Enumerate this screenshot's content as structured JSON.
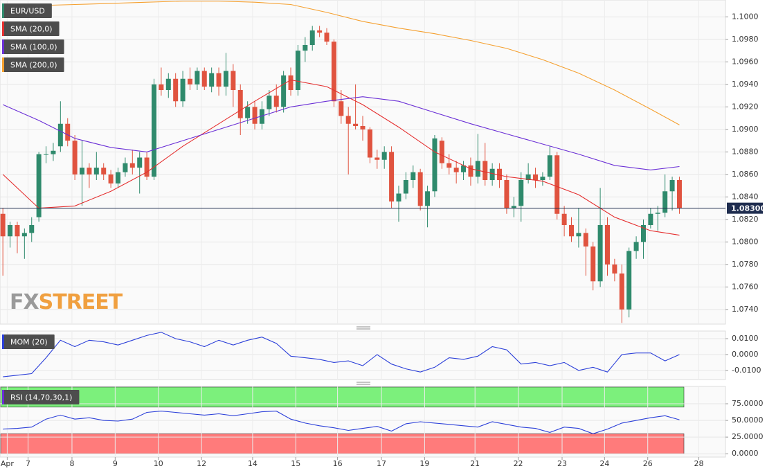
{
  "logo": [
    "FX",
    "STREET"
  ],
  "chart_data": [
    {
      "type": "candlestick",
      "title": "EUR/USD",
      "up_color": "#2f8a6c",
      "down_color": "#e0533f",
      "xlim": [
        -0.4,
        100.4
      ],
      "ylim": [
        1.0727,
        1.1015
      ],
      "yticks": [
        {
          "value": 1.1,
          "label": "1.1000"
        },
        {
          "value": 1.098,
          "label": "1.0980"
        },
        {
          "value": 1.096,
          "label": "1.0960"
        },
        {
          "value": 1.094,
          "label": "1.0940"
        },
        {
          "value": 1.092,
          "label": "1.0920"
        },
        {
          "value": 1.09,
          "label": "1.0900"
        },
        {
          "value": 1.088,
          "label": "1.0880"
        },
        {
          "value": 1.086,
          "label": "1.0860"
        },
        {
          "value": 1.084,
          "label": "1.0840"
        },
        {
          "value": 1.082,
          "label": "1.0820"
        },
        {
          "value": 1.08,
          "label": "1.0800"
        },
        {
          "value": 1.078,
          "label": "1.0780"
        },
        {
          "value": 1.076,
          "label": "1.0760"
        },
        {
          "value": 1.074,
          "label": "1.0740"
        }
      ],
      "grid": true,
      "last_price": {
        "value": 1.083,
        "label": "1.08300"
      },
      "candles": [
        [
          1.0825,
          1.083,
          1.077,
          1.0805
        ],
        [
          1.0805,
          1.0818,
          1.0795,
          1.0815
        ],
        [
          1.0815,
          1.0818,
          1.079,
          1.0805
        ],
        [
          1.0805,
          1.0812,
          1.0785,
          1.0808
        ],
        [
          1.0808,
          1.0822,
          1.08,
          1.0815
        ],
        [
          1.0822,
          1.088,
          1.0818,
          1.0878
        ],
        [
          1.0878,
          1.0885,
          1.087,
          1.0878
        ],
        [
          1.0878,
          1.0888,
          1.0872,
          1.0881
        ],
        [
          1.0885,
          1.0925,
          1.088,
          1.0905
        ],
        [
          1.0905,
          1.091,
          1.0885,
          1.089
        ],
        [
          1.089,
          1.0895,
          1.0855,
          1.086
        ],
        [
          1.086,
          1.089,
          1.0832,
          1.0866
        ],
        [
          1.0866,
          1.087,
          1.0848,
          1.086
        ],
        [
          1.086,
          1.088,
          1.0855,
          1.0866
        ],
        [
          1.0866,
          1.087,
          1.0855,
          1.086
        ],
        [
          1.086,
          1.0864,
          1.0848,
          1.0852
        ],
        [
          1.0852,
          1.0866,
          1.0848,
          1.0862
        ],
        [
          1.0862,
          1.0875,
          1.0858,
          1.087
        ],
        [
          1.087,
          1.0882,
          1.086,
          1.0866
        ],
        [
          1.0866,
          1.088,
          1.0843,
          1.0875
        ],
        [
          1.0875,
          1.088,
          1.0855,
          1.0858
        ],
        [
          1.0858,
          1.0945,
          1.0855,
          1.094
        ],
        [
          1.094,
          1.0955,
          1.093,
          1.0935
        ],
        [
          1.0935,
          1.095,
          1.0928,
          1.0945
        ],
        [
          1.0945,
          1.095,
          1.092,
          1.0925
        ],
        [
          1.0925,
          1.0952,
          1.092,
          1.0945
        ],
        [
          1.0945,
          1.0955,
          1.0935,
          1.094
        ],
        [
          1.094,
          1.0955,
          1.0935,
          1.0952
        ],
        [
          1.0952,
          1.0955,
          1.0935,
          1.0938
        ],
        [
          1.0938,
          1.0955,
          1.0933,
          1.095
        ],
        [
          1.095,
          1.0955,
          1.093,
          1.0938
        ],
        [
          1.0938,
          1.0968,
          1.093,
          1.0952
        ],
        [
          1.0952,
          1.0958,
          1.092,
          1.0935
        ],
        [
          1.0935,
          1.094,
          1.0895,
          1.091
        ],
        [
          1.091,
          1.0925,
          1.0905,
          1.092
        ],
        [
          1.092,
          1.0925,
          1.09,
          1.0905
        ],
        [
          1.0905,
          1.0925,
          1.09,
          1.0918
        ],
        [
          1.0918,
          1.0935,
          1.0912,
          1.093
        ],
        [
          1.093,
          1.094,
          1.0915,
          1.092
        ],
        [
          1.092,
          1.0952,
          1.0915,
          1.0948
        ],
        [
          1.0948,
          1.0955,
          1.093,
          1.0935
        ],
        [
          1.0935,
          1.0975,
          1.093,
          1.097
        ],
        [
          1.097,
          1.0982,
          1.096,
          1.0975
        ],
        [
          1.0975,
          1.0992,
          1.097,
          1.0988
        ],
        [
          1.0988,
          1.0992,
          1.0982,
          1.0986
        ],
        [
          1.0986,
          1.099,
          1.0975,
          1.0978
        ],
        [
          1.0978,
          1.098,
          1.092,
          1.0925
        ],
        [
          1.0925,
          1.0935,
          1.0905,
          1.0912
        ],
        [
          1.0912,
          1.092,
          1.086,
          1.0905
        ],
        [
          1.0905,
          1.094,
          1.09,
          1.0903
        ],
        [
          1.0903,
          1.0912,
          1.089,
          1.09
        ],
        [
          1.09,
          1.0902,
          1.087,
          1.0875
        ],
        [
          1.0875,
          1.0882,
          1.0865,
          1.0873
        ],
        [
          1.0873,
          1.0885,
          1.0865,
          1.088
        ],
        [
          1.088,
          1.0885,
          1.083,
          1.0836
        ],
        [
          1.0836,
          1.085,
          1.0818,
          1.0843
        ],
        [
          1.0843,
          1.0862,
          1.0838,
          1.0855
        ],
        [
          1.0855,
          1.0868,
          1.0848,
          1.0862
        ],
        [
          1.0862,
          1.0865,
          1.0828,
          1.0832
        ],
        [
          1.0832,
          1.085,
          1.0813,
          1.0845
        ],
        [
          1.0845,
          1.0895,
          1.084,
          1.0892
        ],
        [
          1.089,
          1.0893,
          1.0865,
          1.087
        ],
        [
          1.087,
          1.0878,
          1.086,
          1.0866
        ],
        [
          1.0866,
          1.0872,
          1.0852,
          1.0862
        ],
        [
          1.0862,
          1.0872,
          1.0855,
          1.0868
        ],
        [
          1.0868,
          1.0875,
          1.085,
          1.0858
        ],
        [
          1.0858,
          1.0896,
          1.0852,
          1.0872
        ],
        [
          1.0872,
          1.0888,
          1.085,
          1.0855
        ],
        [
          1.0855,
          1.087,
          1.085,
          1.0865
        ],
        [
          1.0865,
          1.087,
          1.0848,
          1.0855
        ],
        [
          1.0855,
          1.086,
          1.0825,
          1.083
        ],
        [
          1.083,
          1.084,
          1.0822,
          1.0832
        ],
        [
          1.0832,
          1.0862,
          1.0818,
          1.0855
        ],
        [
          1.0855,
          1.087,
          1.0852,
          1.086
        ],
        [
          1.086,
          1.0866,
          1.0848,
          1.0855
        ],
        [
          1.0855,
          1.0862,
          1.085,
          1.0858
        ],
        [
          1.0858,
          1.0885,
          1.0855,
          1.0877
        ],
        [
          1.0877,
          1.088,
          1.082,
          1.0825
        ],
        [
          1.0825,
          1.0832,
          1.0805,
          1.0815
        ],
        [
          1.0815,
          1.0822,
          1.08,
          1.0805
        ],
        [
          1.0805,
          1.083,
          1.0795,
          1.0808
        ],
        [
          1.0808,
          1.0812,
          1.077,
          1.0796
        ],
        [
          1.0796,
          1.08,
          1.0757,
          1.0765
        ],
        [
          1.0765,
          1.0848,
          1.076,
          1.0815
        ],
        [
          1.0815,
          1.0822,
          1.077,
          1.078
        ],
        [
          1.078,
          1.0785,
          1.0765,
          1.0772
        ],
        [
          1.0772,
          1.078,
          1.0728,
          1.074
        ],
        [
          1.074,
          1.0795,
          1.0733,
          1.0792
        ],
        [
          1.0792,
          1.0805,
          1.0785,
          1.08
        ],
        [
          1.08,
          1.082,
          1.0785,
          1.0815
        ],
        [
          1.0815,
          1.083,
          1.0812,
          1.0825
        ],
        [
          1.0825,
          1.0832,
          1.081,
          1.0826
        ],
        [
          1.0826,
          1.086,
          1.0822,
          1.0845
        ],
        [
          1.0845,
          1.0858,
          1.0828,
          1.0855
        ],
        [
          1.0855,
          1.0858,
          1.0825,
          1.083
        ]
      ],
      "x": [
        0,
        5,
        10,
        15,
        20,
        25,
        30,
        35,
        40,
        45,
        50,
        55,
        60,
        65,
        70,
        75,
        80,
        85,
        90,
        94
      ],
      "series": [
        {
          "name": "SMA (20,0)",
          "color": "#e52f2f",
          "values": [
            1.086,
            1.083,
            1.0832,
            1.0845,
            1.0862,
            1.0885,
            1.0905,
            1.0925,
            1.0944,
            1.0938,
            1.0922,
            1.0902,
            1.088,
            1.0865,
            1.0858,
            1.0854,
            1.0842,
            1.0822,
            1.081,
            1.0806
          ]
        },
        {
          "name": "SMA (100,0)",
          "color": "#6a2fd6",
          "values": [
            1.0922,
            1.0908,
            1.0892,
            1.0884,
            1.088,
            1.089,
            1.09,
            1.091,
            1.092,
            1.0925,
            1.0929,
            1.0925,
            1.0915,
            1.0905,
            1.0896,
            1.0887,
            1.0878,
            1.0868,
            1.0864,
            1.0867
          ]
        },
        {
          "name": "SMA (200,0)",
          "color": "#f5a030",
          "values": [
            1.101,
            1.101,
            1.1011,
            1.1012,
            1.1013,
            1.1014,
            1.1014,
            1.1013,
            1.1011,
            1.1004,
            1.0996,
            1.099,
            1.0985,
            1.0979,
            1.0972,
            1.0962,
            1.095,
            1.0935,
            1.0918,
            1.0904
          ]
        }
      ]
    },
    {
      "type": "line",
      "title": "MOM (20)",
      "color": "#2b3fd9",
      "xlim": [
        -0.4,
        100.4
      ],
      "ylim": [
        -0.0157,
        0.0148
      ],
      "yticks": [
        {
          "value": 0.01,
          "label": "0.0100"
        },
        {
          "value": 0,
          "label": "0.0000"
        },
        {
          "value": -0.01,
          "label": "-0.0100"
        }
      ],
      "grid": true,
      "x": [
        0,
        2,
        4,
        6,
        8,
        10,
        12,
        14,
        16,
        18,
        20,
        22,
        24,
        26,
        28,
        30,
        32,
        34,
        36,
        38,
        40,
        42,
        44,
        46,
        48,
        50,
        52,
        54,
        56,
        58,
        60,
        62,
        64,
        66,
        68,
        70,
        72,
        74,
        76,
        78,
        80,
        82,
        84,
        86,
        88,
        90,
        92,
        94
      ],
      "values": [
        -0.014,
        -0.013,
        -0.012,
        -0.002,
        0.009,
        0.005,
        0.009,
        0.008,
        0.006,
        0.009,
        0.012,
        0.014,
        0.01,
        0.008,
        0.005,
        0.009,
        0.006,
        0.009,
        0.011,
        0.007,
        -0.001,
        -0.002,
        -0.003,
        -0.005,
        -0.004,
        -0.007,
        0,
        -0.006,
        -0.009,
        -0.011,
        -0.008,
        -0.002,
        -0.003,
        -0.001,
        0.005,
        0.003,
        -0.006,
        -0.005,
        -0.007,
        -0.005,
        -0.01,
        -0.008,
        -0.011,
        0,
        0.001,
        0.001,
        -0.004,
        0
      ]
    },
    {
      "type": "line",
      "title": "RSI (14,70,30,1)",
      "color": "#2b3fd9",
      "xlim": [
        -0.4,
        100.4
      ],
      "ylim": [
        -5,
        101
      ],
      "yticks": [
        {
          "value": 75,
          "label": "75.0000"
        },
        {
          "value": 50,
          "label": "50.0000"
        },
        {
          "value": 25,
          "label": "25.0000"
        },
        {
          "value": 0,
          "label": "0.0000"
        }
      ],
      "grid": true,
      "bands": [
        {
          "from": 70,
          "to": 100,
          "color": "#7cf07c"
        },
        {
          "from": 0,
          "to": 30,
          "color": "#ff7b7b"
        }
      ],
      "x": [
        0,
        2,
        4,
        6,
        8,
        10,
        12,
        14,
        16,
        18,
        20,
        22,
        24,
        26,
        28,
        30,
        32,
        34,
        36,
        38,
        40,
        42,
        44,
        46,
        48,
        50,
        52,
        54,
        56,
        58,
        60,
        62,
        64,
        66,
        68,
        70,
        72,
        74,
        76,
        78,
        80,
        82,
        84,
        86,
        88,
        90,
        92,
        94
      ],
      "values": [
        37,
        38,
        40,
        52,
        58,
        52,
        54,
        50,
        49,
        52,
        62,
        64,
        62,
        60,
        58,
        60,
        57,
        60,
        63,
        64,
        52,
        46,
        42,
        39,
        35,
        38,
        41,
        34,
        45,
        48,
        46,
        44,
        42,
        40,
        48,
        44,
        40,
        38,
        32,
        40,
        38,
        30,
        37,
        46,
        50,
        54,
        57,
        51
      ],
      "xticks": [
        {
          "value": 0.6,
          "label": "Apr"
        },
        {
          "value": 3.5,
          "label": "7"
        },
        {
          "value": 9.6,
          "label": "8"
        },
        {
          "value": 15.6,
          "label": "9"
        },
        {
          "value": 21.6,
          "label": "10"
        },
        {
          "value": 27.6,
          "label": "12"
        },
        {
          "value": 34.7,
          "label": "14"
        },
        {
          "value": 40.7,
          "label": "15"
        },
        {
          "value": 46.5,
          "label": "16"
        },
        {
          "value": 52.6,
          "label": "17"
        },
        {
          "value": 58.6,
          "label": "19"
        },
        {
          "value": 65.6,
          "label": "21"
        },
        {
          "value": 71.6,
          "label": "22"
        },
        {
          "value": 77.7,
          "label": "23"
        },
        {
          "value": 83.6,
          "label": "24"
        },
        {
          "value": 89.6,
          "label": "26"
        },
        {
          "value": 96.7,
          "label": "28"
        }
      ]
    }
  ]
}
